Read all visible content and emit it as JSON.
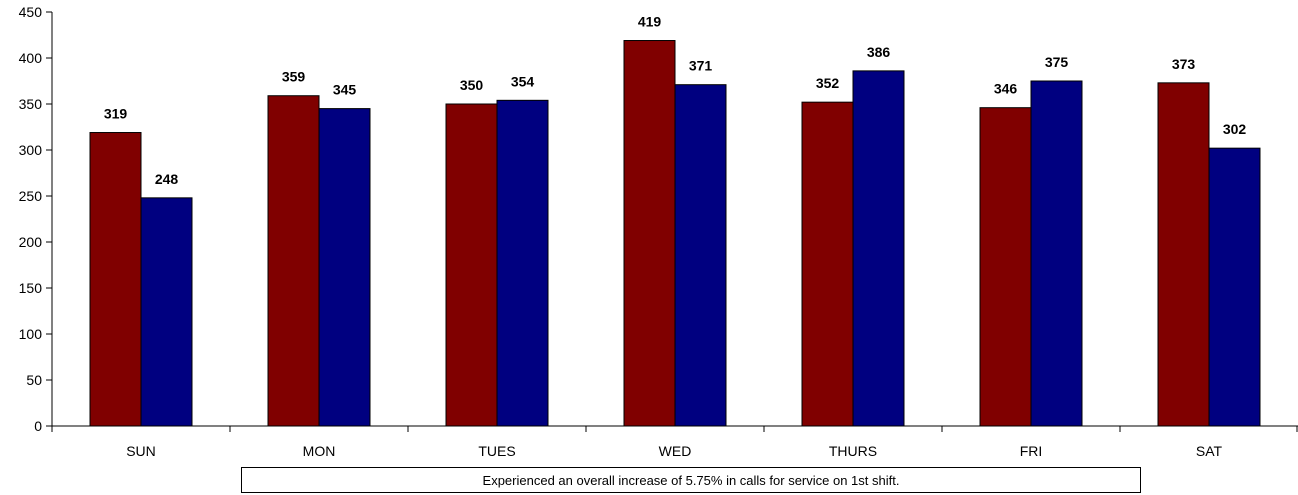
{
  "chart_data": {
    "type": "bar",
    "categories": [
      "SUN",
      "MON",
      "TUES",
      "WED",
      "THURS",
      "FRI",
      "SAT"
    ],
    "series": [
      {
        "values": [
          319,
          359,
          350,
          419,
          352,
          346,
          373
        ],
        "color": "#800000"
      },
      {
        "values": [
          248,
          345,
          354,
          371,
          386,
          375,
          302
        ],
        "color": "#000080"
      }
    ],
    "ylim": [
      0,
      450
    ],
    "yticks": [
      0,
      50,
      100,
      150,
      200,
      250,
      300,
      350,
      400,
      450
    ],
    "grid": false,
    "data_labels": true,
    "title": "",
    "xlabel": "",
    "ylabel": ""
  },
  "note": {
    "text": "Experienced an overall increase of 5.75% in calls for service on 1st shift."
  }
}
